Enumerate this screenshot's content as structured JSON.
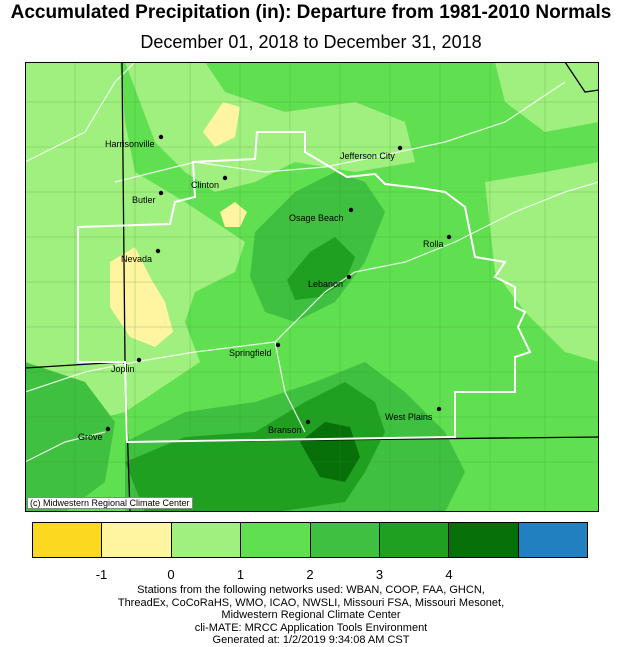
{
  "title": "Accumulated Precipitation (in): Departure from 1981-2010 Normals",
  "subtitle": "December 01, 2018 to December 31, 2018",
  "credit": "(c) Midwestern Regional Climate Center",
  "legend": {
    "colors": [
      "#fcd820",
      "#fff5a0",
      "#a0f080",
      "#60e050",
      "#40c040",
      "#20a020",
      "#087008",
      "#2080c0"
    ],
    "tick_labels": [
      "-1",
      "0",
      "1",
      "2",
      "3",
      "4"
    ]
  },
  "stations": [
    {
      "name": "Harrisonville"
    },
    {
      "name": "Jefferson City"
    },
    {
      "name": "Clinton"
    },
    {
      "name": "Butler"
    },
    {
      "name": "Osage Beach"
    },
    {
      "name": "Rolla"
    },
    {
      "name": "Nevada"
    },
    {
      "name": "Lebanon"
    },
    {
      "name": "Springfield"
    },
    {
      "name": "Joplin"
    },
    {
      "name": "West Plains"
    },
    {
      "name": "Branson"
    },
    {
      "name": "Grove"
    }
  ],
  "footer": {
    "line1": "Stations from the following networks used: WBAN, COOP, FAA, GHCN,",
    "line2": "ThreadEx, CoCoRaHS, WMO, ICAO, NWSLI, Missouri FSA, Missouri Mesonet,",
    "line3": "Midwestern Regional Climate Center",
    "line4": "cli-MATE: MRCC Application Tools Environment",
    "line5": "Generated at: 1/2/2019 9:34:08 AM CST"
  }
}
